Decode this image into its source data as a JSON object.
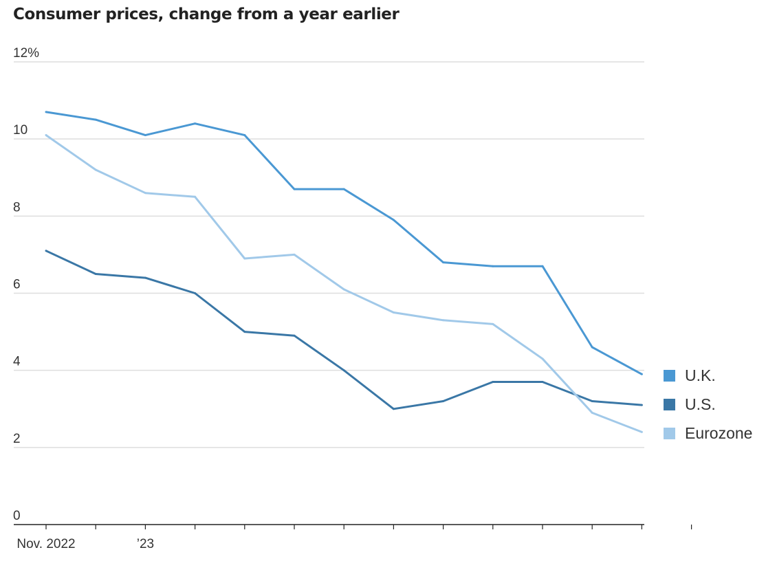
{
  "chart_data": {
    "type": "line",
    "title": "Consumer prices, change from a year earlier",
    "xlabel": "",
    "ylabel": "",
    "x": [
      "2022-11",
      "2022-12",
      "2023-01",
      "2023-02",
      "2023-03",
      "2023-04",
      "2023-05",
      "2023-06",
      "2023-07",
      "2023-08",
      "2023-09",
      "2023-10",
      "2023-11",
      "2023-12"
    ],
    "x_tick_labels": [
      "Nov. 2022",
      "",
      "’23",
      "",
      "",
      "",
      "",
      "",
      "",
      "",
      "",
      "",
      "",
      ""
    ],
    "y_ticks": [
      {
        "value": 0,
        "label": "0"
      },
      {
        "value": 2,
        "label": "2"
      },
      {
        "value": 4,
        "label": "4"
      },
      {
        "value": 6,
        "label": "6"
      },
      {
        "value": 8,
        "label": "8"
      },
      {
        "value": 10,
        "label": "10"
      },
      {
        "value": 12,
        "label": "12%"
      }
    ],
    "ylim": [
      0,
      12
    ],
    "grid": true,
    "legend_position": "right",
    "series": [
      {
        "name": "U.K.",
        "color": "#4a98d3",
        "values": [
          10.7,
          10.5,
          10.1,
          10.4,
          10.1,
          8.7,
          8.7,
          7.9,
          6.8,
          6.7,
          6.7,
          4.6,
          3.9,
          null
        ]
      },
      {
        "name": "U.S.",
        "color": "#3a77a6",
        "values": [
          7.1,
          6.5,
          6.4,
          6.0,
          5.0,
          4.9,
          4.0,
          3.0,
          3.2,
          3.7,
          3.7,
          3.2,
          3.1,
          null
        ]
      },
      {
        "name": "Eurozone",
        "color": "#a1c9e9",
        "values": [
          10.1,
          9.2,
          8.6,
          8.5,
          6.9,
          7.0,
          6.1,
          5.5,
          5.3,
          5.2,
          4.3,
          2.9,
          2.4,
          null
        ]
      }
    ]
  }
}
